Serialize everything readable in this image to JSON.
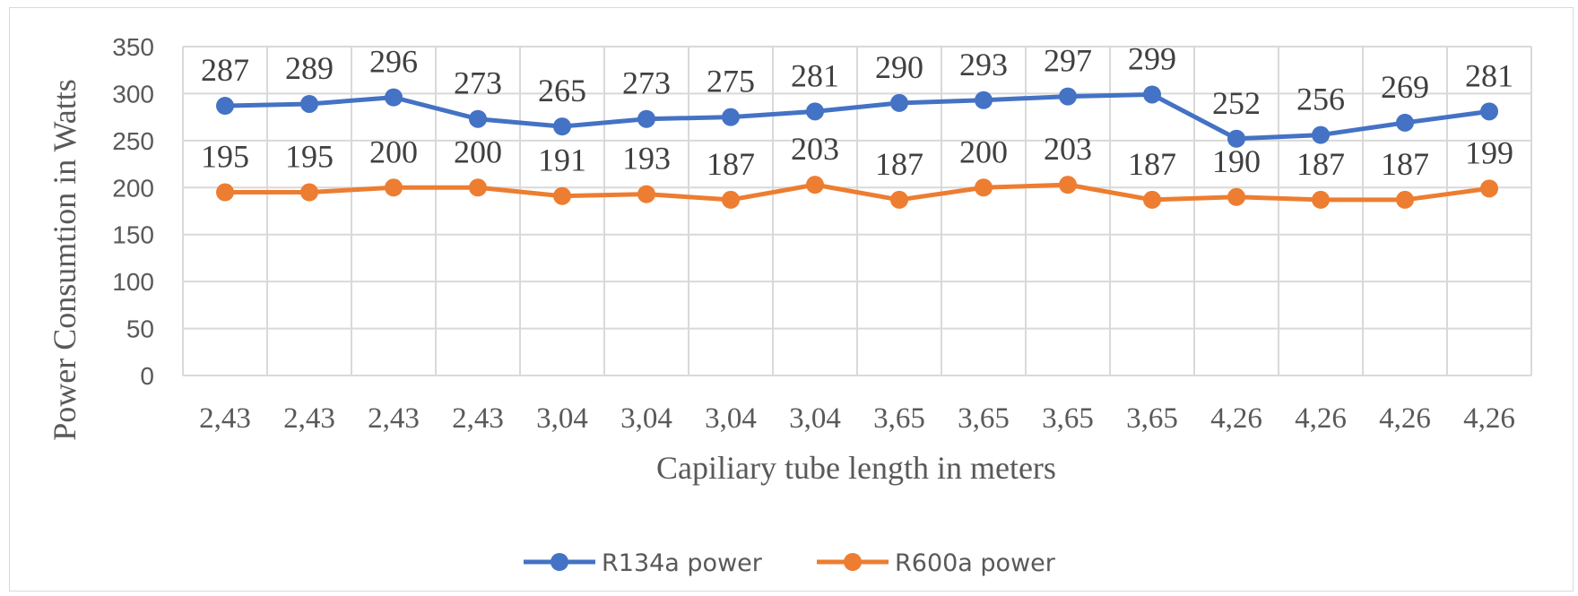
{
  "chart_data": {
    "type": "line",
    "title": "",
    "xlabel": "Capiliary tube length in meters",
    "ylabel": "Power Consumtion in Watts",
    "categories": [
      "2,43",
      "2,43",
      "2,43",
      "2,43",
      "3,04",
      "3,04",
      "3,04",
      "3,04",
      "3,65",
      "3,65",
      "3,65",
      "3,65",
      "4,26",
      "4,26",
      "4,26",
      "4,26"
    ],
    "ylim": [
      0,
      350
    ],
    "yticks": [
      "0",
      "50",
      "100",
      "150",
      "200",
      "250",
      "300",
      "350"
    ],
    "grid": "on",
    "legend_position": "bottom",
    "series": [
      {
        "name": "R134a power",
        "color": "#4472c4",
        "values": [
          287,
          289,
          296,
          273,
          265,
          273,
          275,
          281,
          290,
          293,
          297,
          299,
          252,
          256,
          269,
          281
        ],
        "labels": [
          "287",
          "289",
          "296",
          "273",
          "265",
          "273",
          "275",
          "281",
          "290",
          "293",
          "297",
          "299",
          "252",
          "256",
          "269",
          "281"
        ]
      },
      {
        "name": "R600a power",
        "color": "#ed7d31",
        "values": [
          195,
          195,
          200,
          200,
          191,
          193,
          187,
          203,
          187,
          200,
          203,
          187,
          190,
          187,
          187,
          199
        ],
        "labels": [
          "195",
          "195",
          "200",
          "200",
          "191",
          "193",
          "187",
          "203",
          "187",
          "200",
          "203",
          "187",
          "190",
          "187",
          "187",
          "199"
        ]
      }
    ]
  }
}
